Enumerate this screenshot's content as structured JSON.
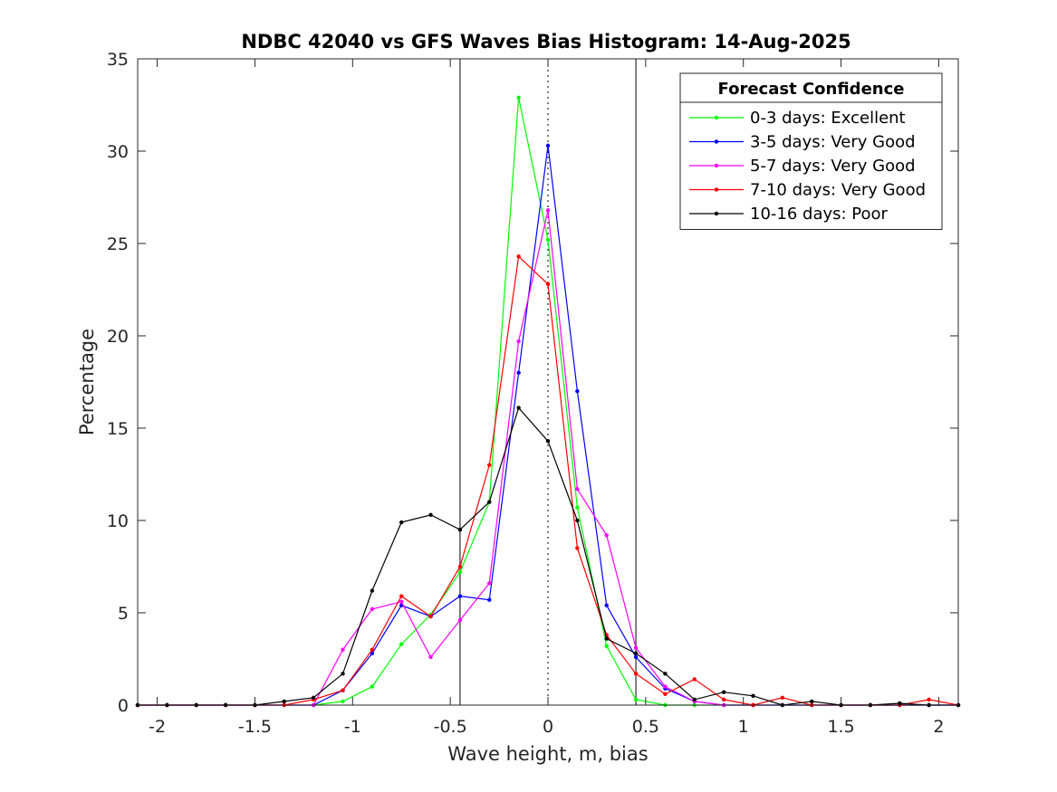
{
  "chart_data": {
    "type": "line",
    "title": "NDBC 42040 vs GFS Waves Bias Histogram: 14-Aug-2025",
    "xlabel": "Wave height, m, bias",
    "ylabel": "Percentage",
    "xlim": [
      -2.1,
      2.1
    ],
    "ylim": [
      0,
      35
    ],
    "xticks": [
      -2,
      -1.5,
      -1,
      -0.5,
      0,
      0.5,
      1,
      1.5,
      2
    ],
    "xtick_labels": [
      "-2",
      "-1.5",
      "-1",
      "-0.5",
      "0",
      "0.5",
      "1",
      "1.5",
      "2"
    ],
    "yticks": [
      0,
      5,
      10,
      15,
      20,
      25,
      30,
      35
    ],
    "ytick_labels": [
      "0",
      "5",
      "10",
      "15",
      "20",
      "25",
      "30",
      "35"
    ],
    "grid": false,
    "legend": {
      "title": "Forecast Confidence",
      "placement": "top-right"
    },
    "reference_lines": [
      {
        "x": -0.45,
        "style": "solid",
        "color": "#000000"
      },
      {
        "x": 0,
        "style": "dotted",
        "color": "#000000"
      },
      {
        "x": 0.45,
        "style": "solid",
        "color": "#000000"
      }
    ],
    "x": [
      -2.1,
      -1.95,
      -1.8,
      -1.65,
      -1.5,
      -1.35,
      -1.2,
      -1.05,
      -0.9,
      -0.75,
      -0.6,
      -0.45,
      -0.3,
      -0.15,
      0,
      0.15,
      0.3,
      0.45,
      0.6,
      0.75,
      0.9,
      1.05,
      1.2,
      1.35,
      1.5,
      1.65,
      1.8,
      1.95,
      2.1
    ],
    "series": [
      {
        "name": "0-3 days: Excellent",
        "color": "#00ff00",
        "values": [
          0,
          0,
          0,
          0,
          0,
          0,
          0,
          0.2,
          1.0,
          3.3,
          4.9,
          7.2,
          11.0,
          32.9,
          25.2,
          10.7,
          3.2,
          0.3,
          0,
          0,
          0,
          0,
          0,
          0,
          0,
          0,
          0,
          0,
          0
        ]
      },
      {
        "name": "3-5 days: Very Good",
        "color": "#0000ff",
        "values": [
          0,
          0,
          0,
          0,
          0,
          0,
          0,
          0.8,
          2.8,
          5.4,
          4.8,
          5.9,
          5.7,
          18.0,
          30.3,
          17.0,
          5.4,
          2.6,
          0.9,
          0.2,
          0,
          0,
          0,
          0,
          0,
          0,
          0,
          0,
          0
        ]
      },
      {
        "name": "5-7 days: Very Good",
        "color": "#ff00ff",
        "values": [
          0,
          0,
          0,
          0,
          0,
          0,
          0,
          3.0,
          5.2,
          5.6,
          2.6,
          4.6,
          6.6,
          19.7,
          26.8,
          11.7,
          9.2,
          3.1,
          1.0,
          0.2,
          0,
          0,
          0,
          0,
          0,
          0,
          0,
          0,
          0
        ]
      },
      {
        "name": "7-10 days: Very Good",
        "color": "#ff0000",
        "values": [
          0,
          0,
          0,
          0,
          0,
          0,
          0.3,
          0.8,
          3.0,
          5.9,
          4.8,
          7.5,
          13.0,
          24.3,
          22.8,
          8.5,
          3.8,
          1.7,
          0.6,
          1.4,
          0.3,
          0,
          0.4,
          0,
          0,
          0,
          0,
          0.3,
          0
        ]
      },
      {
        "name": "10-16 days: Poor",
        "color": "#000000",
        "values": [
          0,
          0,
          0,
          0,
          0,
          0.2,
          0.4,
          1.7,
          6.2,
          9.9,
          10.3,
          9.5,
          11.0,
          16.1,
          14.3,
          10.0,
          3.6,
          2.8,
          1.7,
          0.3,
          0.7,
          0.5,
          0,
          0.2,
          0,
          0,
          0.1,
          0,
          0
        ]
      }
    ]
  }
}
